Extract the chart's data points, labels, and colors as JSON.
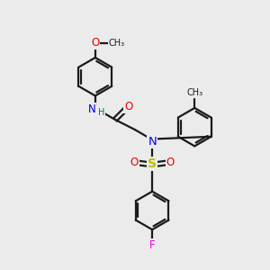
{
  "bg_color": "#ebebeb",
  "bond_color": "#1a1a1a",
  "colors": {
    "N": "#0000ee",
    "O": "#ee0000",
    "S": "#bbbb00",
    "F": "#ee00ee",
    "H": "#007070",
    "C": "#1a1a1a"
  },
  "lw": 1.6,
  "dbo": 0.09,
  "r": 0.72,
  "fs": 8.5
}
